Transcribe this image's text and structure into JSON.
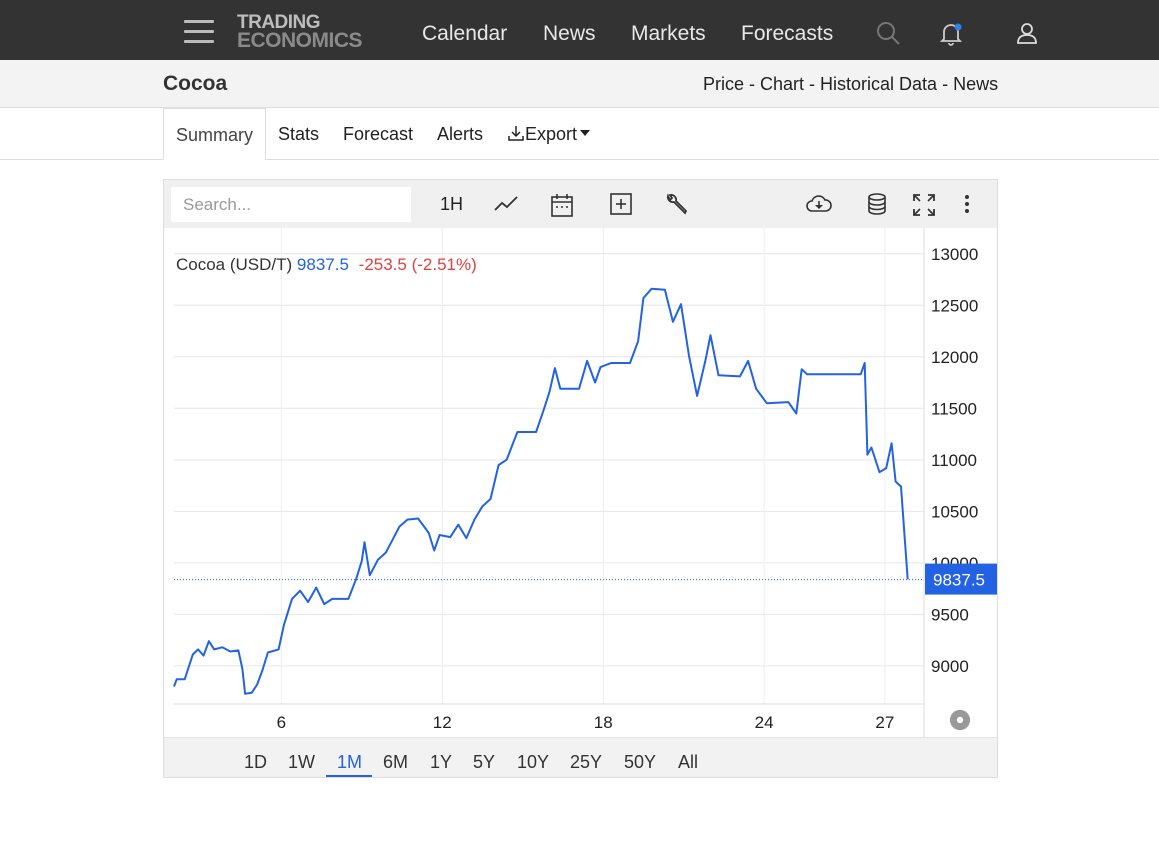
{
  "nav": {
    "logo_line1": "TRADING",
    "logo_line2": "ECONOMICS",
    "links": [
      "Calendar",
      "News",
      "Markets",
      "Forecasts"
    ]
  },
  "header": {
    "title": "Cocoa",
    "links": [
      "Price",
      "Chart",
      "Historical Data",
      "News"
    ],
    "separator": " - "
  },
  "tabs": {
    "active": "Summary",
    "items": [
      "Stats",
      "Forecast",
      "Alerts"
    ],
    "export_label": "Export"
  },
  "toolbar": {
    "search_placeholder": "Search...",
    "interval_label": "1H"
  },
  "legend": {
    "name": "Cocoa (USD/T)",
    "price": "9837.5",
    "change": "-253.5 (-2.51%)"
  },
  "price_tag": "9837.5",
  "ranges": {
    "items": [
      "1D",
      "1W",
      "1M",
      "6M",
      "1Y",
      "5Y",
      "10Y",
      "25Y",
      "50Y",
      "All"
    ],
    "active": "1M"
  },
  "colors": {
    "line": "#2262e3",
    "negative": "#e04040",
    "nav_bg": "#333333"
  },
  "chart_data": {
    "type": "line",
    "series": [
      {
        "name": "Cocoa (USD/T)",
        "x": [
          0,
          2,
          4,
          6,
          8,
          10,
          12,
          14,
          16,
          18,
          20,
          22,
          24,
          26,
          27
        ],
        "points": [
          [
            0.0,
            8800
          ],
          [
            0.1,
            8870
          ],
          [
            0.4,
            8870
          ],
          [
            0.7,
            9110
          ],
          [
            0.9,
            9160
          ],
          [
            1.1,
            9100
          ],
          [
            1.3,
            9240
          ],
          [
            1.5,
            9160
          ],
          [
            1.8,
            9180
          ],
          [
            2.1,
            9140
          ],
          [
            2.4,
            9150
          ],
          [
            2.55,
            8970
          ],
          [
            2.65,
            8730
          ],
          [
            2.9,
            8740
          ],
          [
            3.1,
            8820
          ],
          [
            3.3,
            8960
          ],
          [
            3.5,
            9130
          ],
          [
            3.9,
            9160
          ],
          [
            4.1,
            9400
          ],
          [
            4.4,
            9650
          ],
          [
            4.7,
            9730
          ],
          [
            5.0,
            9620
          ],
          [
            5.3,
            9760
          ],
          [
            5.6,
            9600
          ],
          [
            5.9,
            9650
          ],
          [
            6.5,
            9650
          ],
          [
            6.8,
            9850
          ],
          [
            7.0,
            10020
          ],
          [
            7.1,
            10200
          ],
          [
            7.3,
            9880
          ],
          [
            7.6,
            10030
          ],
          [
            7.9,
            10100
          ],
          [
            8.1,
            10200
          ],
          [
            8.4,
            10350
          ],
          [
            8.7,
            10420
          ],
          [
            9.1,
            10430
          ],
          [
            9.5,
            10290
          ],
          [
            9.7,
            10120
          ],
          [
            9.9,
            10270
          ],
          [
            10.3,
            10250
          ],
          [
            10.6,
            10370
          ],
          [
            10.9,
            10240
          ],
          [
            11.2,
            10420
          ],
          [
            11.5,
            10550
          ],
          [
            11.8,
            10620
          ],
          [
            12.1,
            10950
          ],
          [
            12.4,
            11000
          ],
          [
            12.8,
            11270
          ],
          [
            13.5,
            11270
          ],
          [
            13.8,
            11500
          ],
          [
            14.0,
            11660
          ],
          [
            14.2,
            11890
          ],
          [
            14.4,
            11690
          ],
          [
            15.1,
            11690
          ],
          [
            15.4,
            11960
          ],
          [
            15.7,
            11750
          ],
          [
            15.9,
            11900
          ],
          [
            16.3,
            11940
          ],
          [
            17.0,
            11940
          ],
          [
            17.3,
            12150
          ],
          [
            17.5,
            12570
          ],
          [
            17.8,
            12660
          ],
          [
            18.3,
            12650
          ],
          [
            18.6,
            12340
          ],
          [
            18.9,
            12510
          ],
          [
            19.2,
            12010
          ],
          [
            19.5,
            11620
          ],
          [
            19.8,
            11950
          ],
          [
            20.0,
            12210
          ],
          [
            20.3,
            11820
          ],
          [
            21.1,
            11810
          ],
          [
            21.4,
            11960
          ],
          [
            21.7,
            11690
          ],
          [
            22.1,
            11550
          ],
          [
            22.9,
            11560
          ],
          [
            23.2,
            11450
          ],
          [
            23.4,
            11880
          ],
          [
            23.6,
            11830
          ],
          [
            24.9,
            11830
          ],
          [
            25.6,
            11830
          ],
          [
            25.75,
            11940
          ],
          [
            25.85,
            11050
          ],
          [
            26.0,
            11120
          ],
          [
            26.3,
            10880
          ],
          [
            26.55,
            10920
          ],
          [
            26.75,
            11160
          ],
          [
            26.9,
            10790
          ],
          [
            27.1,
            10740
          ],
          [
            27.35,
            9840
          ]
        ]
      }
    ],
    "xticks": [
      "6",
      "12",
      "18",
      "24",
      "27"
    ],
    "xtick_positions": [
      4,
      10,
      16,
      22,
      26.5
    ],
    "yticks": [
      9000,
      9500,
      10000,
      10500,
      11000,
      11500,
      12000,
      12500,
      13000
    ],
    "ylim": [
      8630,
      13250
    ],
    "xlim": [
      0,
      27.4
    ],
    "last_value": 9837.5,
    "grid": true
  }
}
